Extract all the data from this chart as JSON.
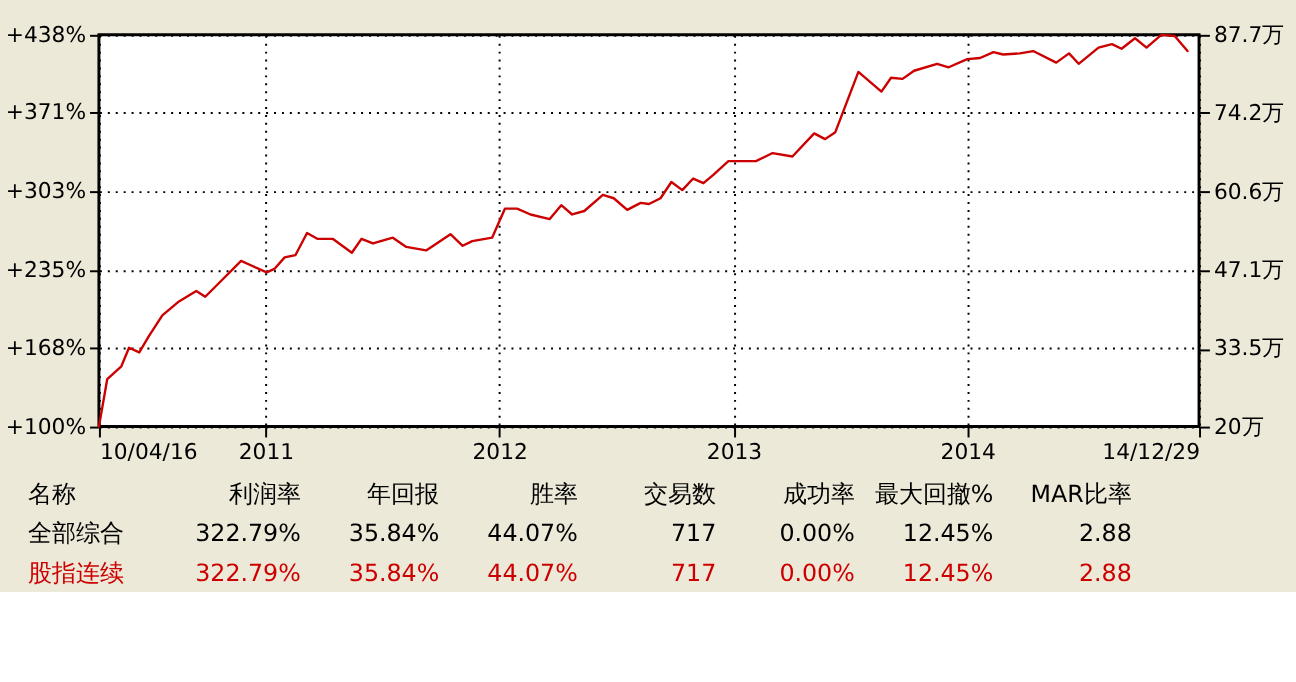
{
  "chart_data": {
    "type": "line",
    "x": [
      "2010-04-16",
      "2010-04-29",
      "2010-05-21",
      "2010-06-02",
      "2010-06-18",
      "2010-07-03",
      "2010-07-24",
      "2010-08-19",
      "2010-09-15",
      "2010-09-29",
      "2010-10-19",
      "2010-11-24",
      "2010-12-10",
      "2011-01-03",
      "2011-01-15",
      "2011-01-31",
      "2011-02-17",
      "2011-03-07",
      "2011-03-23",
      "2011-04-16",
      "2011-05-16",
      "2011-05-31",
      "2011-06-18",
      "2011-07-19",
      "2011-08-09",
      "2011-09-09",
      "2011-10-17",
      "2011-11-05",
      "2011-11-20",
      "2011-12-21",
      "2012-01-10",
      "2012-01-29",
      "2012-02-19",
      "2012-03-20",
      "2012-04-07",
      "2012-04-24",
      "2012-05-13",
      "2012-06-11",
      "2012-06-28",
      "2012-07-19",
      "2012-08-09",
      "2012-08-22",
      "2012-09-09",
      "2012-09-26",
      "2012-10-13",
      "2012-10-30",
      "2012-11-15",
      "2012-11-30",
      "2012-12-24",
      "2013-02-05",
      "2013-03-03",
      "2013-04-03",
      "2013-05-07",
      "2013-05-24",
      "2013-06-09",
      "2013-07-15",
      "2013-08-20",
      "2013-09-04",
      "2013-09-22",
      "2013-10-10",
      "2013-11-15",
      "2013-12-03",
      "2014-01-01",
      "2014-01-21",
      "2014-02-11",
      "2014-02-26",
      "2014-03-24",
      "2014-04-14",
      "2014-05-20",
      "2014-06-09",
      "2014-06-24",
      "2014-07-25",
      "2014-08-15",
      "2014-08-30",
      "2014-09-20",
      "2014-10-08",
      "2014-10-31",
      "2014-11-21",
      "2014-12-11"
    ],
    "series": [
      {
        "color": "#cc0000",
        "values": [
          100,
          141,
          152,
          168,
          164,
          178,
          196,
          208,
          217,
          212,
          223,
          243,
          239,
          233,
          236,
          246,
          248,
          267,
          262,
          262,
          250,
          262,
          258,
          263,
          255,
          252,
          266,
          256,
          260,
          263,
          288,
          288,
          283,
          279,
          291,
          283,
          286,
          300,
          297,
          287,
          293,
          292,
          297,
          311,
          304,
          314,
          310,
          317,
          329,
          329,
          336,
          333,
          353,
          348,
          354,
          406,
          389,
          401,
          400,
          407,
          413,
          410,
          417,
          418,
          423,
          421,
          422,
          424,
          414,
          422,
          413,
          427,
          430,
          426,
          435,
          427,
          438,
          437,
          424
        ]
      }
    ],
    "xlim": [
      "2010-04-16",
      "2014-12-29"
    ],
    "xticks": [
      {
        "value": "2010-04-16",
        "label": "10/04/16"
      },
      {
        "value": "2011-01-01",
        "label": "2011"
      },
      {
        "value": "2012-01-01",
        "label": "2012"
      },
      {
        "value": "2013-01-01",
        "label": "2013"
      },
      {
        "value": "2014-01-01",
        "label": "2014"
      },
      {
        "value": "2014-12-29",
        "label": "14/12/29"
      }
    ],
    "ylim": [
      100,
      438
    ],
    "yticks": [
      {
        "value": 100,
        "label": "+100%"
      },
      {
        "value": 168,
        "label": "+168%"
      },
      {
        "value": 235,
        "label": "+235%"
      },
      {
        "value": 303,
        "label": "+303%"
      },
      {
        "value": 371,
        "label": "+371%"
      },
      {
        "value": 438,
        "label": "+438%"
      }
    ],
    "y2lim": [
      20,
      87.7
    ],
    "y2ticks": [
      {
        "value": 20,
        "label": "20万"
      },
      {
        "value": 33.5,
        "label": "33.5万"
      },
      {
        "value": 47.1,
        "label": "47.1万"
      },
      {
        "value": 60.6,
        "label": "60.6万"
      },
      {
        "value": 74.2,
        "label": "74.2万"
      },
      {
        "value": 87.7,
        "label": "87.7万"
      }
    ],
    "grid": true,
    "annotations": [
      "名称",
      "利润率",
      "年回报",
      "胜率",
      "交易数",
      "成功率",
      "最大回撤%",
      "MAR比率",
      "全部综合",
      "322.79%",
      "35.84%",
      "44.07%",
      "717",
      "0.00%",
      "12.45%",
      "2.88",
      "股指连续",
      "322.79%",
      "35.84%",
      "44.07%",
      "717",
      "0.00%",
      "12.45%",
      "2.88"
    ]
  }
}
